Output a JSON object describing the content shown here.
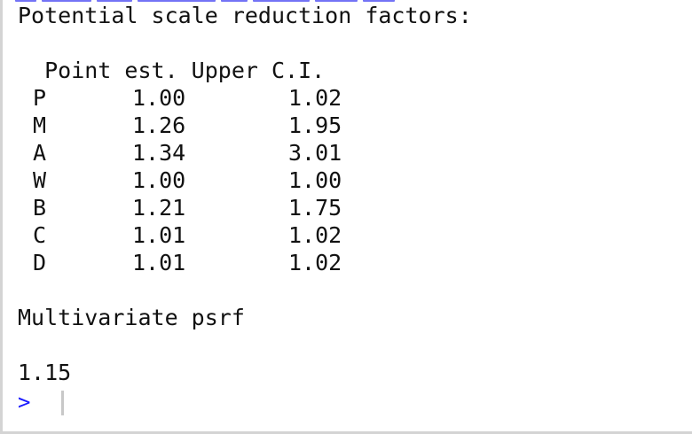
{
  "console": {
    "heading": "Potential scale reduction factors:",
    "table_header": "  Point est. Upper C.I.",
    "rows": [
      {
        "label": "P",
        "point_est": "1.00",
        "upper_ci": "1.02"
      },
      {
        "label": "M",
        "point_est": "1.26",
        "upper_ci": "1.95"
      },
      {
        "label": "A",
        "point_est": "1.34",
        "upper_ci": "3.01"
      },
      {
        "label": "W",
        "point_est": "1.00",
        "upper_ci": "1.00"
      },
      {
        "label": "B",
        "point_est": "1.21",
        "upper_ci": "1.75"
      },
      {
        "label": "C",
        "point_est": "1.01",
        "upper_ci": "1.02"
      },
      {
        "label": "D",
        "point_est": "1.01",
        "upper_ci": "1.02"
      }
    ],
    "multivariate_label": "Multivariate psrf",
    "multivariate_value": "1.15",
    "prompt": ">"
  }
}
